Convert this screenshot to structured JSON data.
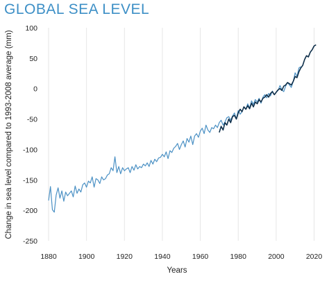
{
  "chart_data": {
    "type": "line",
    "title": "GLOBAL SEA LEVEL",
    "xlabel": "Years",
    "ylabel": "Change in sea level compared to 1993-2008 average (mm)",
    "xlim": [
      1880,
      2022
    ],
    "ylim": [
      -250,
      100
    ],
    "x_ticks": [
      1880,
      1900,
      1920,
      1940,
      1960,
      1980,
      2000,
      2020
    ],
    "y_ticks": [
      100,
      50,
      0,
      -50,
      -100,
      -150,
      -200,
      -250
    ],
    "grid": "vertical",
    "colors": {
      "tide_gauge": "#4a90c4",
      "satellite": "#0f2f4a",
      "title": "#3d8fc6"
    },
    "series": [
      {
        "key": "tide_gauge",
        "x": [
          1880,
          1881,
          1882,
          1883,
          1884,
          1885,
          1886,
          1887,
          1888,
          1889,
          1890,
          1891,
          1892,
          1893,
          1894,
          1895,
          1896,
          1897,
          1898,
          1899,
          1900,
          1901,
          1902,
          1903,
          1904,
          1905,
          1906,
          1907,
          1908,
          1909,
          1910,
          1911,
          1912,
          1913,
          1914,
          1915,
          1916,
          1917,
          1918,
          1919,
          1920,
          1921,
          1922,
          1923,
          1924,
          1925,
          1926,
          1927,
          1928,
          1929,
          1930,
          1931,
          1932,
          1933,
          1934,
          1935,
          1936,
          1937,
          1938,
          1939,
          1940,
          1941,
          1942,
          1943,
          1944,
          1945,
          1946,
          1947,
          1948,
          1949,
          1950,
          1951,
          1952,
          1953,
          1954,
          1955,
          1956,
          1957,
          1958,
          1959,
          1960,
          1961,
          1962,
          1963,
          1964,
          1965,
          1966,
          1967,
          1968,
          1969,
          1970,
          1971,
          1972,
          1973,
          1974,
          1975,
          1976,
          1977,
          1978,
          1979,
          1980,
          1981,
          1982,
          1983,
          1984,
          1985,
          1986,
          1987,
          1988,
          1989,
          1990,
          1991,
          1992,
          1993,
          1994,
          1995,
          1996,
          1997,
          1998,
          1999,
          2000,
          2001,
          2002,
          2003,
          2004,
          2005,
          2006,
          2007,
          2008,
          2009,
          2010,
          2011,
          2012,
          2013
        ],
        "values": [
          -184,
          -161,
          -199,
          -203,
          -175,
          -163,
          -180,
          -168,
          -185,
          -170,
          -176,
          -172,
          -168,
          -178,
          -160,
          -172,
          -165,
          -170,
          -158,
          -155,
          -162,
          -152,
          -155,
          -145,
          -162,
          -148,
          -150,
          -156,
          -145,
          -150,
          -148,
          -142,
          -140,
          -130,
          -135,
          -112,
          -138,
          -128,
          -140,
          -130,
          -135,
          -132,
          -130,
          -138,
          -128,
          -134,
          -125,
          -132,
          -128,
          -130,
          -124,
          -127,
          -122,
          -128,
          -118,
          -124,
          -116,
          -120,
          -114,
          -113,
          -108,
          -112,
          -104,
          -115,
          -102,
          -105,
          -98,
          -95,
          -90,
          -100,
          -92,
          -86,
          -96,
          -82,
          -88,
          -78,
          -92,
          -78,
          -74,
          -80,
          -70,
          -65,
          -74,
          -60,
          -68,
          -72,
          -64,
          -66,
          -60,
          -64,
          -56,
          -52,
          -60,
          -55,
          -48,
          -46,
          -52,
          -45,
          -40,
          -50,
          -36,
          -42,
          -38,
          -30,
          -34,
          -25,
          -32,
          -20,
          -26,
          -18,
          -22,
          -16,
          -24,
          -14,
          -10,
          -15,
          -8,
          -12,
          -4,
          -10,
          -6,
          -3,
          5,
          -2,
          -5,
          4,
          10,
          6,
          2,
          12,
          26,
          20,
          34,
          36
        ]
      },
      {
        "key": "satellite",
        "x": [
          1970,
          1971,
          1972,
          1973,
          1974,
          1975,
          1976,
          1977,
          1978,
          1979,
          1980,
          1981,
          1982,
          1983,
          1984,
          1985,
          1986,
          1987,
          1988,
          1989,
          1990,
          1991,
          1992,
          1993,
          1994,
          1995,
          1996,
          1997,
          1998,
          1999,
          2000,
          2001,
          2002,
          2003,
          2004,
          2005,
          2006,
          2007,
          2008,
          2009,
          2010,
          2011,
          2012,
          2013,
          2014,
          2015,
          2016,
          2017,
          2018,
          2019,
          2020,
          2021
        ],
        "values": [
          -72,
          -62,
          -68,
          -56,
          -60,
          -50,
          -56,
          -46,
          -44,
          -50,
          -40,
          -34,
          -38,
          -30,
          -34,
          -28,
          -33,
          -24,
          -30,
          -22,
          -25,
          -18,
          -22,
          -16,
          -14,
          -10,
          -14,
          -8,
          -5,
          -10,
          -6,
          -2,
          0,
          -3,
          4,
          6,
          10,
          8,
          6,
          12,
          20,
          18,
          28,
          34,
          38,
          48,
          54,
          52,
          60,
          64,
          70,
          72
        ]
      }
    ]
  }
}
